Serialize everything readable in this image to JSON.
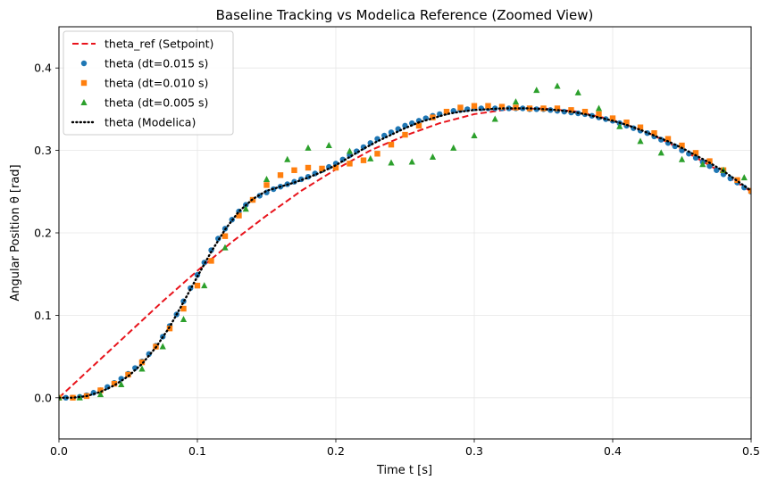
{
  "chart_data": {
    "type": "line",
    "title": "Baseline Tracking vs Modelica Reference (Zoomed View)",
    "xlabel": "Time t  [s]",
    "ylabel": "Angular Position θ  [rad]",
    "xlim": [
      0,
      0.5
    ],
    "ylim": [
      -0.05,
      0.45
    ],
    "xticks": [
      0.0,
      0.1,
      0.2,
      0.3,
      0.4,
      0.5
    ],
    "xtick_labels": [
      "0.0",
      "0.1",
      "0.2",
      "0.3",
      "0.4",
      "0.5"
    ],
    "yticks": [
      0.0,
      0.1,
      0.2,
      0.3,
      0.4
    ],
    "ytick_labels": [
      "0.0",
      "0.1",
      "0.2",
      "0.3",
      "0.4"
    ],
    "grid": true,
    "legend_position": "top-left",
    "series": [
      {
        "name": "theta_ref (Setpoint)",
        "style": "dashed-line",
        "color": "#e8141c",
        "x": [
          0,
          0.025,
          0.05,
          0.075,
          0.1,
          0.125,
          0.15,
          0.175,
          0.2,
          0.225,
          0.25,
          0.275,
          0.3,
          0.325,
          0.35,
          0.375,
          0.4,
          0.425,
          0.45,
          0.475,
          0.5
        ],
        "y": [
          0.0,
          0.039,
          0.078,
          0.117,
          0.154,
          0.189,
          0.221,
          0.251,
          0.277,
          0.3,
          0.318,
          0.333,
          0.344,
          0.35,
          0.351,
          0.347,
          0.337,
          0.322,
          0.301,
          0.277,
          0.25
        ]
      },
      {
        "name": "theta (dt=0.015 s)",
        "style": "circle",
        "color": "#1f77b4",
        "x": [
          0,
          0.005,
          0.01,
          0.015,
          0.02,
          0.025,
          0.03,
          0.035,
          0.04,
          0.045,
          0.05,
          0.055,
          0.06,
          0.065,
          0.07,
          0.075,
          0.08,
          0.085,
          0.09,
          0.095,
          0.1,
          0.105,
          0.11,
          0.115,
          0.12,
          0.125,
          0.13,
          0.135,
          0.14,
          0.145,
          0.15,
          0.155,
          0.16,
          0.165,
          0.17,
          0.175,
          0.18,
          0.185,
          0.19,
          0.195,
          0.2,
          0.205,
          0.21,
          0.215,
          0.22,
          0.225,
          0.23,
          0.235,
          0.24,
          0.245,
          0.25,
          0.255,
          0.26,
          0.265,
          0.27,
          0.275,
          0.28,
          0.285,
          0.29,
          0.295,
          0.3,
          0.305,
          0.31,
          0.315,
          0.32,
          0.325,
          0.33,
          0.335,
          0.34,
          0.345,
          0.35,
          0.355,
          0.36,
          0.365,
          0.37,
          0.375,
          0.38,
          0.385,
          0.39,
          0.395,
          0.4,
          0.405,
          0.41,
          0.415,
          0.42,
          0.425,
          0.43,
          0.435,
          0.44,
          0.445,
          0.45,
          0.455,
          0.46,
          0.465,
          0.47,
          0.475,
          0.48,
          0.485,
          0.49,
          0.495,
          0.5
        ],
        "y": [
          0.0,
          0.0,
          0.0,
          0.001,
          0.003,
          0.006,
          0.009,
          0.013,
          0.018,
          0.023,
          0.029,
          0.036,
          0.044,
          0.053,
          0.063,
          0.074,
          0.087,
          0.101,
          0.117,
          0.133,
          0.149,
          0.164,
          0.179,
          0.193,
          0.205,
          0.216,
          0.226,
          0.234,
          0.24,
          0.245,
          0.249,
          0.253,
          0.256,
          0.259,
          0.262,
          0.265,
          0.268,
          0.272,
          0.276,
          0.28,
          0.284,
          0.289,
          0.294,
          0.299,
          0.304,
          0.309,
          0.314,
          0.318,
          0.322,
          0.326,
          0.33,
          0.333,
          0.336,
          0.339,
          0.342,
          0.344,
          0.346,
          0.348,
          0.349,
          0.35,
          0.351,
          0.351,
          0.351,
          0.351,
          0.351,
          0.351,
          0.351,
          0.351,
          0.35,
          0.35,
          0.35,
          0.349,
          0.348,
          0.347,
          0.346,
          0.345,
          0.344,
          0.342,
          0.34,
          0.338,
          0.336,
          0.333,
          0.33,
          0.327,
          0.324,
          0.321,
          0.317,
          0.313,
          0.309,
          0.305,
          0.3,
          0.296,
          0.291,
          0.286,
          0.281,
          0.276,
          0.271,
          0.266,
          0.261,
          0.255,
          0.25
        ]
      },
      {
        "name": "theta (dt=0.010 s)",
        "style": "square",
        "color": "#ff7f0e",
        "x": [
          0,
          0.01,
          0.02,
          0.03,
          0.04,
          0.05,
          0.06,
          0.07,
          0.08,
          0.09,
          0.1,
          0.11,
          0.12,
          0.13,
          0.14,
          0.15,
          0.16,
          0.17,
          0.18,
          0.19,
          0.2,
          0.21,
          0.22,
          0.23,
          0.24,
          0.25,
          0.26,
          0.27,
          0.28,
          0.29,
          0.3,
          0.31,
          0.32,
          0.33,
          0.34,
          0.35,
          0.36,
          0.37,
          0.38,
          0.39,
          0.4,
          0.41,
          0.42,
          0.43,
          0.44,
          0.45,
          0.46,
          0.47,
          0.48,
          0.49,
          0.5
        ],
        "y": [
          0.0,
          0.0,
          0.002,
          0.009,
          0.017,
          0.028,
          0.043,
          0.062,
          0.084,
          0.108,
          0.136,
          0.166,
          0.196,
          0.221,
          0.24,
          0.258,
          0.27,
          0.276,
          0.279,
          0.278,
          0.279,
          0.284,
          0.288,
          0.296,
          0.307,
          0.319,
          0.33,
          0.34,
          0.347,
          0.352,
          0.354,
          0.354,
          0.353,
          0.352,
          0.351,
          0.351,
          0.351,
          0.349,
          0.347,
          0.344,
          0.339,
          0.334,
          0.328,
          0.321,
          0.314,
          0.306,
          0.297,
          0.287,
          0.276,
          0.264,
          0.251
        ]
      },
      {
        "name": "theta (dt=0.005 s)",
        "style": "triangle",
        "color": "#2ca02c",
        "x": [
          0,
          0.015,
          0.03,
          0.045,
          0.06,
          0.075,
          0.09,
          0.105,
          0.12,
          0.135,
          0.15,
          0.165,
          0.18,
          0.195,
          0.21,
          0.225,
          0.24,
          0.255,
          0.27,
          0.285,
          0.3,
          0.315,
          0.33,
          0.345,
          0.36,
          0.375,
          0.39,
          0.405,
          0.42,
          0.435,
          0.45,
          0.465,
          0.48,
          0.495
        ],
        "y": [
          0.0,
          0.0,
          0.004,
          0.016,
          0.035,
          0.062,
          0.095,
          0.136,
          0.182,
          0.229,
          0.265,
          0.289,
          0.303,
          0.306,
          0.299,
          0.29,
          0.285,
          0.286,
          0.292,
          0.303,
          0.318,
          0.338,
          0.359,
          0.373,
          0.378,
          0.37,
          0.351,
          0.329,
          0.311,
          0.297,
          0.289,
          0.283,
          0.276,
          0.267
        ]
      },
      {
        "name": "theta (Modelica)",
        "style": "dotted-line",
        "color": "#000000",
        "x": [
          0,
          0.01,
          0.02,
          0.03,
          0.04,
          0.05,
          0.06,
          0.07,
          0.08,
          0.09,
          0.1,
          0.11,
          0.12,
          0.13,
          0.14,
          0.15,
          0.16,
          0.17,
          0.18,
          0.19,
          0.2,
          0.21,
          0.22,
          0.23,
          0.24,
          0.25,
          0.26,
          0.27,
          0.28,
          0.29,
          0.3,
          0.31,
          0.32,
          0.33,
          0.34,
          0.35,
          0.36,
          0.37,
          0.38,
          0.39,
          0.4,
          0.41,
          0.42,
          0.43,
          0.44,
          0.45,
          0.46,
          0.47,
          0.48,
          0.49,
          0.5
        ],
        "y": [
          0.0,
          0.0,
          0.002,
          0.007,
          0.015,
          0.026,
          0.041,
          0.061,
          0.086,
          0.116,
          0.147,
          0.177,
          0.204,
          0.226,
          0.241,
          0.251,
          0.256,
          0.261,
          0.267,
          0.274,
          0.282,
          0.292,
          0.302,
          0.311,
          0.319,
          0.327,
          0.334,
          0.339,
          0.344,
          0.347,
          0.349,
          0.35,
          0.351,
          0.351,
          0.351,
          0.35,
          0.349,
          0.347,
          0.344,
          0.34,
          0.336,
          0.331,
          0.325,
          0.318,
          0.311,
          0.303,
          0.294,
          0.285,
          0.275,
          0.263,
          0.251
        ]
      }
    ]
  }
}
